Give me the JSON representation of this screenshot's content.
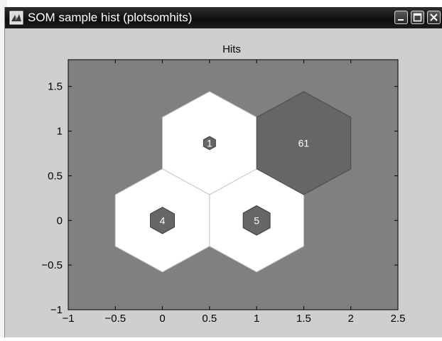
{
  "window": {
    "title": "SOM sample hist (plotsomhits)",
    "icon": "matlab-figure-icon",
    "controls": [
      "minimize-icon",
      "maximize-icon",
      "close-icon"
    ]
  },
  "colors": {
    "titlebar": "#141414",
    "figure_bg": "#cfcfcf",
    "axes_bg": "#808080",
    "neuron_fill": "#ffffff",
    "neuron_edge": "#c8c8c8",
    "hit_fill": "#666666",
    "hit_label": "#ffffff"
  },
  "chart_data": {
    "type": "hexagonal-hits",
    "title": "Hits",
    "xlim": [
      -1,
      2.5
    ],
    "ylim": [
      -1,
      1.8
    ],
    "xticks": [
      "−1",
      "−0.5",
      "0",
      "0.5",
      "1",
      "1.5",
      "2",
      "2.5"
    ],
    "xtick_values": [
      -1,
      -0.5,
      0,
      0.5,
      1,
      1.5,
      2,
      2.5
    ],
    "yticks": [
      "−1",
      "−0.5",
      "0",
      "0.5",
      "1",
      "1.5"
    ],
    "ytick_values": [
      -1,
      -0.5,
      0,
      0.5,
      1,
      1.5
    ],
    "neuron_radius": 0.577,
    "max_hits": 61,
    "neurons": [
      {
        "x": 0,
        "y": 0,
        "hits": 4,
        "label": "4"
      },
      {
        "x": 1,
        "y": 0,
        "hits": 5,
        "label": "5"
      },
      {
        "x": 0.5,
        "y": 0.866,
        "hits": 1,
        "label": "1"
      },
      {
        "x": 1.5,
        "y": 0.866,
        "hits": 61,
        "label": "61"
      }
    ]
  }
}
